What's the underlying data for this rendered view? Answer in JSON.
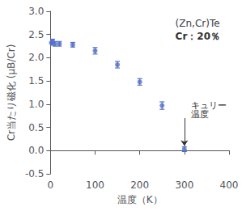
{
  "chart_data": {
    "type": "scatter",
    "title": "(Zn,Cr)Te",
    "subtitle": "Cr：20％",
    "xlabel": "温度（K）",
    "ylabel": "Cr当たり磁化 (μB/Cr)",
    "x": [
      2,
      5,
      10,
      20,
      50,
      100,
      150,
      200,
      250,
      300
    ],
    "values": [
      2.32,
      2.35,
      2.3,
      2.3,
      2.28,
      2.15,
      1.85,
      1.48,
      0.97,
      0.03
    ],
    "yerr": [
      0.05,
      0.05,
      0.05,
      0.05,
      0.05,
      0.07,
      0.07,
      0.07,
      0.08,
      0.05
    ],
    "marker": "circle",
    "xlim": [
      0,
      400
    ],
    "ylim": [
      -0.5,
      3.0
    ],
    "xticks": [
      0,
      100,
      200,
      300,
      400
    ],
    "yticks": [
      -0.5,
      {
        "value": 0.0,
        "label": "0.0"
      },
      0.5,
      {
        "value": 1.0,
        "label": "1.0"
      },
      1.5,
      {
        "value": 2.0,
        "label": "2.0"
      },
      2.5,
      {
        "value": 3.0,
        "label": "3.0"
      }
    ],
    "grid": false,
    "annotations": [
      {
        "text": "キュリー",
        "x": 315,
        "y": 0.97
      },
      {
        "text": "温度",
        "x": 315,
        "y": 0.78
      }
    ],
    "arrow": {
      "x": 300,
      "y_start": 0.7,
      "y_end": 0.1
    }
  }
}
